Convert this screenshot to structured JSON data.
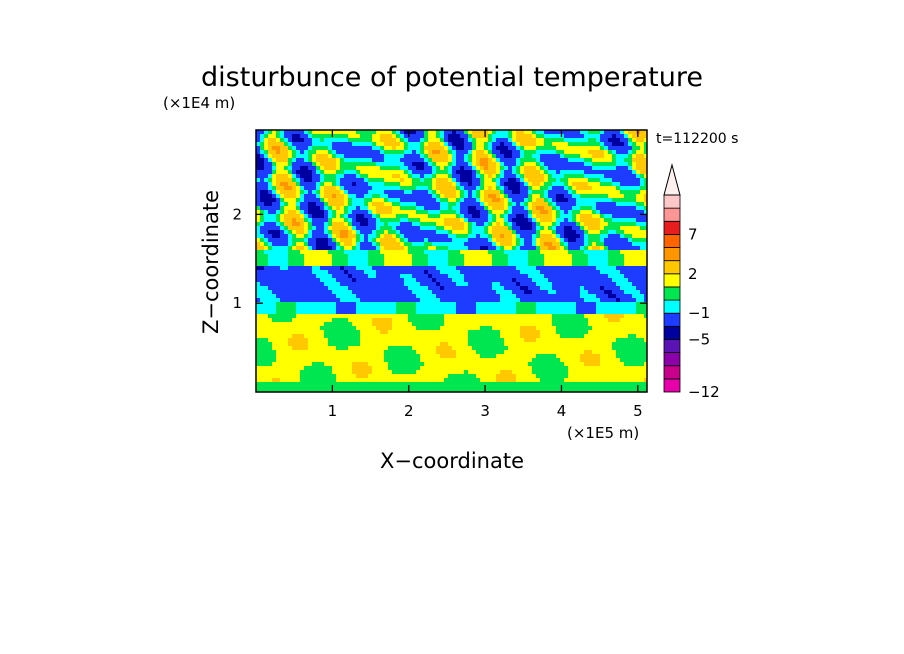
{
  "chart_data": {
    "type": "heatmap",
    "title": "disturbunce of potential temperature",
    "xlabel": "X−coordinate",
    "ylabel": "Z−coordinate",
    "x_unit": "(×1E5 m)",
    "y_unit": "(×1E4 m)",
    "time_label": "t=112200 s",
    "xlim": [
      0,
      5.12
    ],
    "ylim": [
      0,
      2.95
    ],
    "x_ticks": [
      {
        "value": 1,
        "label": "1"
      },
      {
        "value": 2,
        "label": "2"
      },
      {
        "value": 3,
        "label": "3"
      },
      {
        "value": 4,
        "label": "4"
      },
      {
        "value": 5,
        "label": "5"
      }
    ],
    "y_ticks": [
      {
        "value": 1,
        "label": "1"
      },
      {
        "value": 2,
        "label": "2"
      }
    ],
    "colorbar": {
      "levels": [
        -12,
        -10,
        -8,
        -6,
        -5,
        -3,
        -1,
        0,
        1,
        2,
        4,
        5,
        7,
        9,
        11
      ],
      "colors": [
        "#e600aa",
        "#c8008c",
        "#8c00aa",
        "#5a14b4",
        "#0000a0",
        "#1e3cff",
        "#00ffff",
        "#00e650",
        "#ffff00",
        "#ffc800",
        "#ff9600",
        "#ff6400",
        "#e61e1e",
        "#ff9696",
        "#ffc8c8"
      ],
      "extend": "max",
      "tick_labels": [
        {
          "value": 7,
          "label": "7"
        },
        {
          "value": 2,
          "label": "2"
        },
        {
          "value": -1,
          "label": "−1"
        },
        {
          "value": -5,
          "label": "−5"
        },
        {
          "value": -12,
          "label": "−12"
        }
      ]
    }
  }
}
